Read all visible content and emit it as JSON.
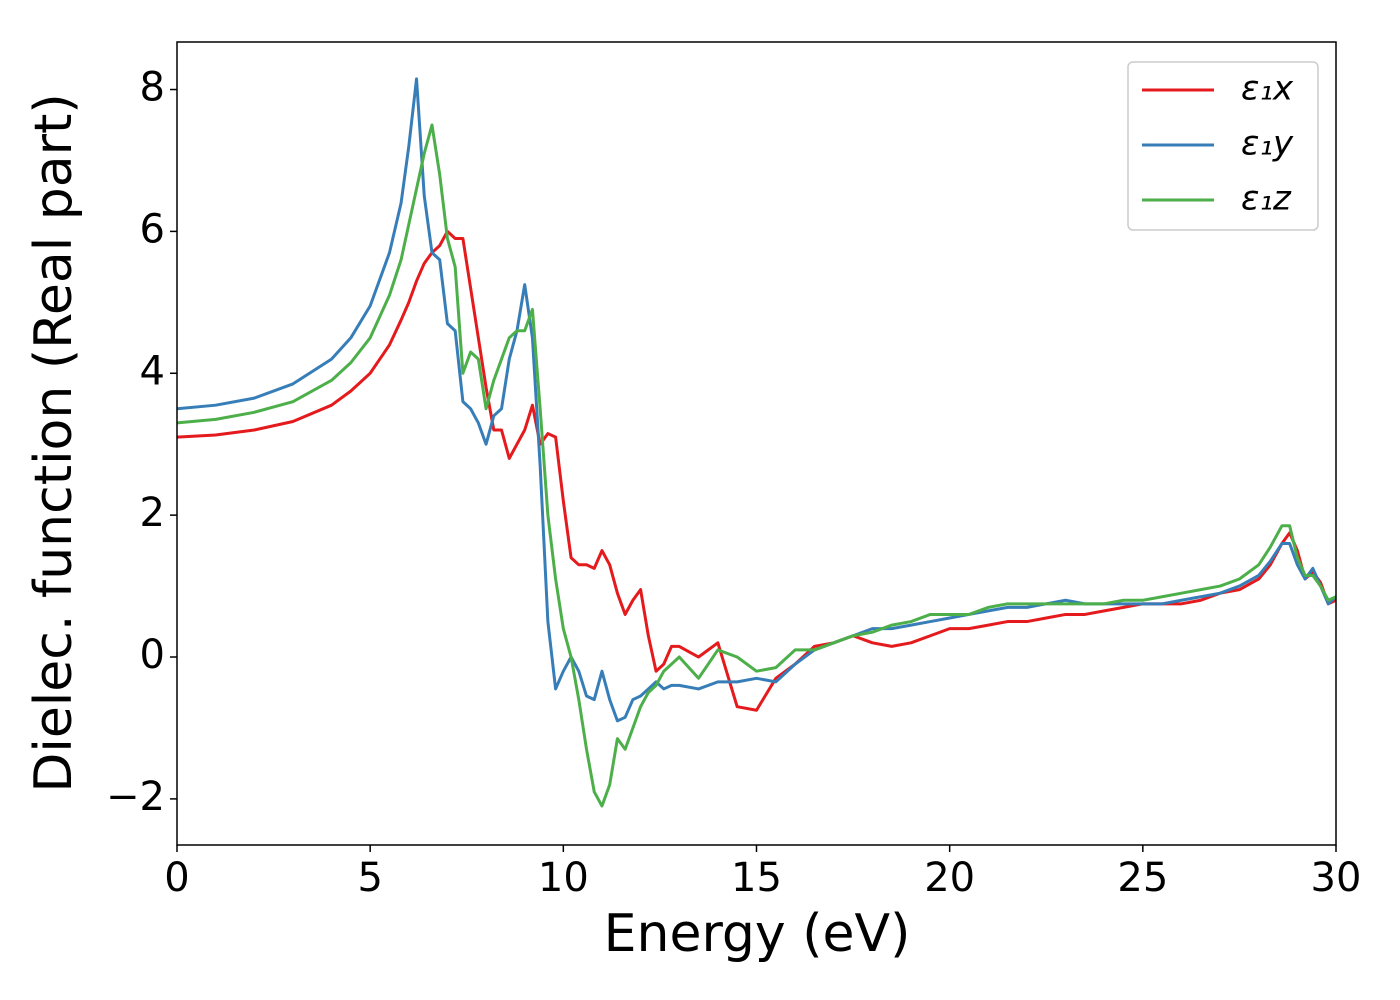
{
  "chart_data": {
    "type": "line",
    "x_label": "Energy (eV)",
    "y_label": "Dielec. function (Real part)",
    "xlim": [
      0,
      30
    ],
    "ylim": [
      -2.65,
      8.67
    ],
    "xticks": [
      0,
      5,
      10,
      15,
      20,
      25,
      30
    ],
    "yticks": [
      {
        "value": -2,
        "label": "−2"
      },
      0,
      2,
      4,
      6,
      8
    ],
    "legend": "upper right",
    "x": [
      0,
      1,
      2,
      3,
      4,
      4.5,
      5,
      5.5,
      5.8,
      6,
      6.2,
      6.4,
      6.6,
      6.8,
      7,
      7.2,
      7.4,
      7.6,
      7.8,
      8,
      8.2,
      8.4,
      8.6,
      8.8,
      9,
      9.2,
      9.4,
      9.6,
      9.8,
      10,
      10.2,
      10.4,
      10.6,
      10.8,
      11,
      11.2,
      11.4,
      11.6,
      11.8,
      12,
      12.2,
      12.4,
      12.6,
      12.8,
      13,
      13.5,
      14,
      14.5,
      15,
      15.5,
      16,
      16.5,
      17,
      17.5,
      18,
      18.5,
      19,
      19.5,
      20,
      20.5,
      21,
      21.5,
      22,
      22.5,
      23,
      23.5,
      24,
      24.5,
      25,
      25.5,
      26,
      26.5,
      27,
      27.5,
      28,
      28.3,
      28.6,
      28.8,
      29,
      29.2,
      29.4,
      29.6,
      29.8,
      30
    ],
    "series": [
      {
        "name": "ε₁x",
        "color": "#e41a1c",
        "values": [
          3.1,
          3.13,
          3.2,
          3.32,
          3.55,
          3.75,
          4.0,
          4.4,
          4.75,
          5.0,
          5.3,
          5.55,
          5.7,
          5.8,
          6.0,
          5.9,
          5.9,
          5.2,
          4.5,
          3.8,
          3.2,
          3.2,
          2.8,
          3.0,
          3.2,
          3.55,
          3.0,
          3.15,
          3.1,
          2.2,
          1.4,
          1.3,
          1.3,
          1.25,
          1.5,
          1.3,
          0.9,
          0.6,
          0.8,
          0.95,
          0.3,
          -0.2,
          -0.1,
          0.15,
          0.15,
          0.0,
          0.2,
          -0.7,
          -0.75,
          -0.3,
          -0.1,
          0.15,
          0.2,
          0.3,
          0.2,
          0.15,
          0.2,
          0.3,
          0.4,
          0.4,
          0.45,
          0.5,
          0.5,
          0.55,
          0.6,
          0.6,
          0.65,
          0.7,
          0.75,
          0.75,
          0.75,
          0.8,
          0.9,
          0.95,
          1.1,
          1.3,
          1.6,
          1.75,
          1.5,
          1.1,
          1.2,
          1.05,
          0.75,
          0.8
        ]
      },
      {
        "name": "ε₁y",
        "color": "#377eb8",
        "values": [
          3.5,
          3.55,
          3.65,
          3.85,
          4.2,
          4.5,
          4.95,
          5.7,
          6.4,
          7.2,
          8.15,
          6.5,
          5.7,
          5.6,
          4.7,
          4.6,
          3.6,
          3.5,
          3.3,
          3.0,
          3.4,
          3.5,
          4.2,
          4.6,
          5.25,
          4.5,
          2.7,
          0.5,
          -0.45,
          -0.2,
          0.0,
          -0.2,
          -0.55,
          -0.6,
          -0.2,
          -0.6,
          -0.9,
          -0.85,
          -0.6,
          -0.55,
          -0.45,
          -0.35,
          -0.45,
          -0.4,
          -0.4,
          -0.45,
          -0.35,
          -0.35,
          -0.3,
          -0.35,
          -0.1,
          0.1,
          0.2,
          0.3,
          0.4,
          0.4,
          0.45,
          0.5,
          0.55,
          0.6,
          0.65,
          0.7,
          0.7,
          0.75,
          0.8,
          0.75,
          0.75,
          0.75,
          0.75,
          0.75,
          0.8,
          0.85,
          0.9,
          1.0,
          1.15,
          1.35,
          1.6,
          1.6,
          1.3,
          1.1,
          1.25,
          1.0,
          0.75,
          0.85
        ]
      },
      {
        "name": "ε₁z",
        "color": "#4daf4a",
        "values": [
          3.3,
          3.35,
          3.45,
          3.6,
          3.9,
          4.15,
          4.5,
          5.1,
          5.6,
          6.1,
          6.6,
          7.1,
          7.5,
          6.8,
          5.9,
          5.5,
          4.0,
          4.3,
          4.2,
          3.5,
          3.9,
          4.2,
          4.5,
          4.6,
          4.6,
          4.9,
          3.5,
          2.0,
          1.1,
          0.4,
          0.0,
          -0.6,
          -1.3,
          -1.9,
          -2.1,
          -1.8,
          -1.15,
          -1.3,
          -1.0,
          -0.7,
          -0.5,
          -0.4,
          -0.2,
          -0.1,
          0.0,
          -0.3,
          0.1,
          0.0,
          -0.2,
          -0.15,
          0.1,
          0.1,
          0.2,
          0.3,
          0.35,
          0.45,
          0.5,
          0.6,
          0.6,
          0.6,
          0.7,
          0.75,
          0.75,
          0.75,
          0.75,
          0.75,
          0.75,
          0.8,
          0.8,
          0.85,
          0.9,
          0.95,
          1.0,
          1.1,
          1.3,
          1.55,
          1.85,
          1.85,
          1.4,
          1.15,
          1.15,
          1.0,
          0.8,
          0.85
        ]
      }
    ]
  }
}
